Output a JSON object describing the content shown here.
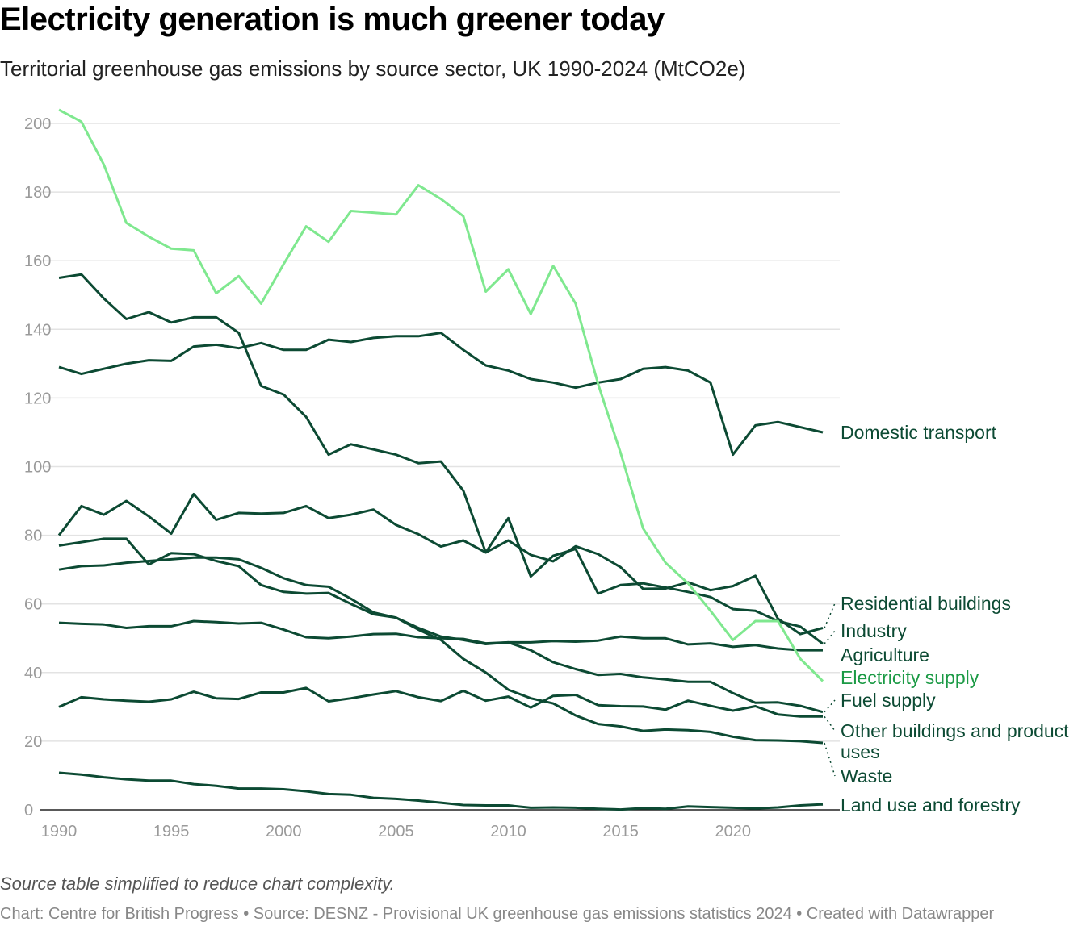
{
  "title": "Electricity generation is much greener today",
  "subtitle": "Territorial greenhouse gas emissions by source sector, UK 1990-2024 (MtCO2e)",
  "note": "Source table simplified to reduce chart complexity.",
  "credits": "Chart: Centre for British Progress • Source: DESNZ - Provisional UK greenhouse gas emissions statistics 2024 • Created with Datawrapper",
  "chart_data": {
    "type": "line",
    "title": "Electricity generation is much greener today",
    "subtitle": "Territorial greenhouse gas emissions by source sector, UK 1990-2024 (MtCO2e)",
    "xlim": [
      1990,
      2024
    ],
    "ylim": [
      0,
      200
    ],
    "x_ticks": [
      "1990",
      "1995",
      "2000",
      "2005",
      "2010",
      "2015",
      "2020"
    ],
    "y_ticks": [
      "0",
      "20",
      "40",
      "60",
      "80",
      "100",
      "120",
      "140",
      "160",
      "180",
      "200"
    ],
    "grid": "horizontal",
    "legend": "direct labels at right",
    "colors": {
      "highlight": "#7fe88f",
      "highlight_label": "#1b9a45",
      "default": "#0c4a33",
      "grid": "#e3e3e3"
    },
    "x_start": 1990,
    "series": [
      {
        "name": "Domestic transport",
        "highlight": false,
        "values": [
          129,
          127,
          128.5,
          130,
          131,
          130.8,
          135,
          135.5,
          134.5,
          136,
          134,
          134,
          137,
          136.3,
          137.5,
          138,
          138,
          139,
          134,
          129.5,
          128,
          125.5,
          124.5,
          123,
          124.5,
          125.5,
          128.5,
          129,
          128,
          124.5,
          103.5,
          112,
          113,
          111.5,
          110
        ]
      },
      {
        "name": "Residential buildings",
        "highlight": false,
        "values": [
          80,
          88.5,
          86,
          90,
          85.5,
          80.5,
          92,
          84.5,
          86.5,
          86.3,
          86.5,
          88.5,
          85,
          86,
          87.5,
          83,
          80.3,
          76.7,
          78.5,
          75,
          78.5,
          74.3,
          72.4,
          76.8,
          74.5,
          70.7,
          64.4,
          64.5,
          66.3,
          64,
          65.2,
          68.2,
          55.7,
          51.2,
          53
        ]
      },
      {
        "name": "Industry",
        "highlight": false,
        "values": [
          155,
          156,
          149,
          143,
          145,
          142,
          143.5,
          143.5,
          139,
          123.5,
          121,
          114.5,
          103.5,
          106.5,
          105,
          103.5,
          101,
          101.5,
          93,
          75,
          85,
          68,
          74,
          76,
          63,
          65.5,
          66,
          64.8,
          63.5,
          62,
          58.5,
          58,
          55,
          53.4,
          48.4
        ]
      },
      {
        "name": "Agriculture",
        "highlight": false,
        "values": [
          54.5,
          54.2,
          54,
          53,
          53.5,
          53.5,
          55,
          54.7,
          54.3,
          54.5,
          52.5,
          50.3,
          50,
          50.5,
          51.2,
          51.3,
          50.3,
          50,
          49.8,
          48.5,
          48.8,
          48.8,
          49.2,
          49,
          49.3,
          50.5,
          50,
          50,
          48.2,
          48.5,
          47.5,
          48,
          47,
          46.5,
          46.5
        ]
      },
      {
        "name": "Electricity supply",
        "highlight": true,
        "values": [
          204,
          200.5,
          188,
          171,
          167,
          163.5,
          163,
          150.5,
          155.5,
          147.5,
          159,
          170,
          165.5,
          174.5,
          174,
          173.5,
          182,
          178,
          173,
          151,
          157.5,
          144.5,
          158.5,
          147.5,
          124,
          104,
          82,
          72,
          66,
          58,
          49.5,
          55,
          55,
          44,
          37.5
        ]
      },
      {
        "name": "Fuel supply",
        "highlight": false,
        "values": [
          77,
          78,
          79,
          79,
          71.5,
          74.8,
          74.5,
          72.5,
          71,
          65.5,
          63.5,
          63,
          63.2,
          60,
          57,
          56,
          53,
          50.5,
          49.5,
          48.3,
          48.8,
          46.5,
          43,
          41,
          39.3,
          39.6,
          38.6,
          38,
          37.3,
          37.3,
          34,
          31.2,
          31.3,
          30.3,
          28.5
        ]
      },
      {
        "name": "Other buildings and product uses",
        "highlight": false,
        "values": [
          30,
          32.8,
          32.2,
          31.8,
          31.5,
          32.2,
          34.4,
          32.5,
          32.3,
          34.2,
          34.2,
          35.5,
          31.6,
          32.5,
          33.6,
          34.6,
          32.8,
          31.7,
          34.7,
          31.8,
          33,
          29.8,
          33.2,
          33.5,
          30.5,
          30.2,
          30.1,
          29.2,
          31.8,
          30.3,
          28.9,
          30.2,
          27.8,
          27.2,
          27.2
        ]
      },
      {
        "name": "Waste",
        "highlight": false,
        "values": [
          70,
          71,
          71.2,
          72,
          72.5,
          73,
          73.5,
          73.5,
          73,
          70.5,
          67.5,
          65.5,
          65,
          61.5,
          57.5,
          56,
          52.5,
          49.5,
          44,
          40,
          35,
          32.5,
          31,
          27.5,
          25,
          24.3,
          23,
          23.4,
          23.2,
          22.7,
          21.3,
          20.3,
          20.2,
          20,
          19.5
        ]
      },
      {
        "name": "Land use and forestry",
        "highlight": false,
        "values": [
          10.8,
          10.3,
          9.5,
          8.9,
          8.5,
          8.5,
          7.5,
          7,
          6.2,
          6.2,
          6,
          5.4,
          4.6,
          4.4,
          3.5,
          3.2,
          2.7,
          2.1,
          1.4,
          1.3,
          1.3,
          0.6,
          0.7,
          0.6,
          0.3,
          0.1,
          0.5,
          0.3,
          1,
          0.8,
          0.6,
          0.4,
          0.7,
          1.3,
          1.6
        ]
      }
    ]
  }
}
